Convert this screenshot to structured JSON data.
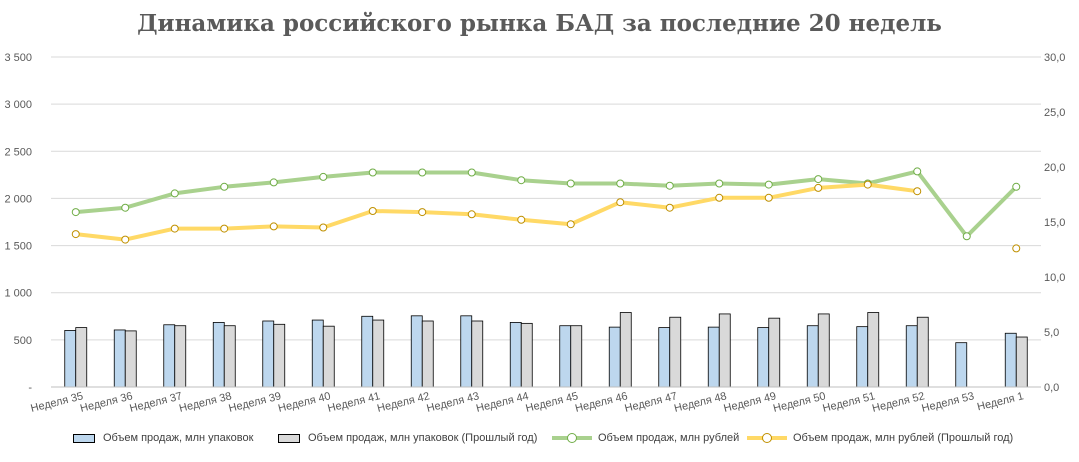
{
  "chart_data": {
    "type": "bar",
    "title": "Динамика российского рынка БАД за последние 20 недель",
    "categories": [
      "Неделя 35",
      "Неделя 36",
      "Неделя 37",
      "Неделя 38",
      "Неделя 39",
      "Неделя 40",
      "Неделя 41",
      "Неделя 42",
      "Неделя 43",
      "Неделя 44",
      "Неделя 45",
      "Неделя 46",
      "Неделя 47",
      "Неделя 48",
      "Неделя 49",
      "Неделя 50",
      "Неделя 51",
      "Неделя 52",
      "Неделя 53",
      "Неделя 1"
    ],
    "y_left": {
      "ticks": [
        "-",
        "500",
        "1 000",
        "1 500",
        "2 000",
        "2 500",
        "3 000",
        "3 500"
      ],
      "ylim": [
        0,
        3500
      ]
    },
    "y_right": {
      "ticks": [
        "0,0",
        "5,0",
        "10,0",
        "15,0",
        "20,0",
        "25,0",
        "30,0"
      ],
      "ylim": [
        0,
        30
      ]
    },
    "grid": true,
    "legend_position": "bottom",
    "series": [
      {
        "name": "Объем продаж, млн упаковок",
        "kind": "bar",
        "axis": "left",
        "color": "#bdd7ee",
        "values": [
          600,
          605,
          660,
          685,
          700,
          710,
          750,
          755,
          755,
          685,
          650,
          635,
          630,
          635,
          630,
          650,
          640,
          650,
          470,
          570
        ]
      },
      {
        "name": "Объем продаж, млн упаковок (Прошлый год)",
        "kind": "bar",
        "axis": "left",
        "color": "#d9d9d9",
        "values": [
          630,
          595,
          650,
          650,
          665,
          645,
          710,
          700,
          700,
          675,
          650,
          790,
          740,
          775,
          730,
          775,
          790,
          740,
          null,
          530
        ]
      },
      {
        "name": "Объем продаж, млн рублей",
        "kind": "line",
        "axis": "right",
        "color": "#a9d18e",
        "values": [
          15.9,
          16.3,
          17.6,
          18.2,
          18.6,
          19.1,
          19.5,
          19.5,
          19.5,
          18.8,
          18.5,
          18.5,
          18.3,
          18.5,
          18.4,
          18.9,
          18.5,
          19.6,
          13.7,
          18.2
        ]
      },
      {
        "name": "Объем продаж, млн рублей (Прошлый год)",
        "kind": "line",
        "axis": "right",
        "color": "#ffd966",
        "values": [
          13.9,
          13.4,
          14.4,
          14.4,
          14.6,
          14.5,
          16.0,
          15.9,
          15.7,
          15.2,
          14.8,
          16.8,
          16.3,
          17.2,
          17.2,
          18.1,
          18.4,
          17.8,
          null,
          12.6
        ]
      }
    ]
  }
}
